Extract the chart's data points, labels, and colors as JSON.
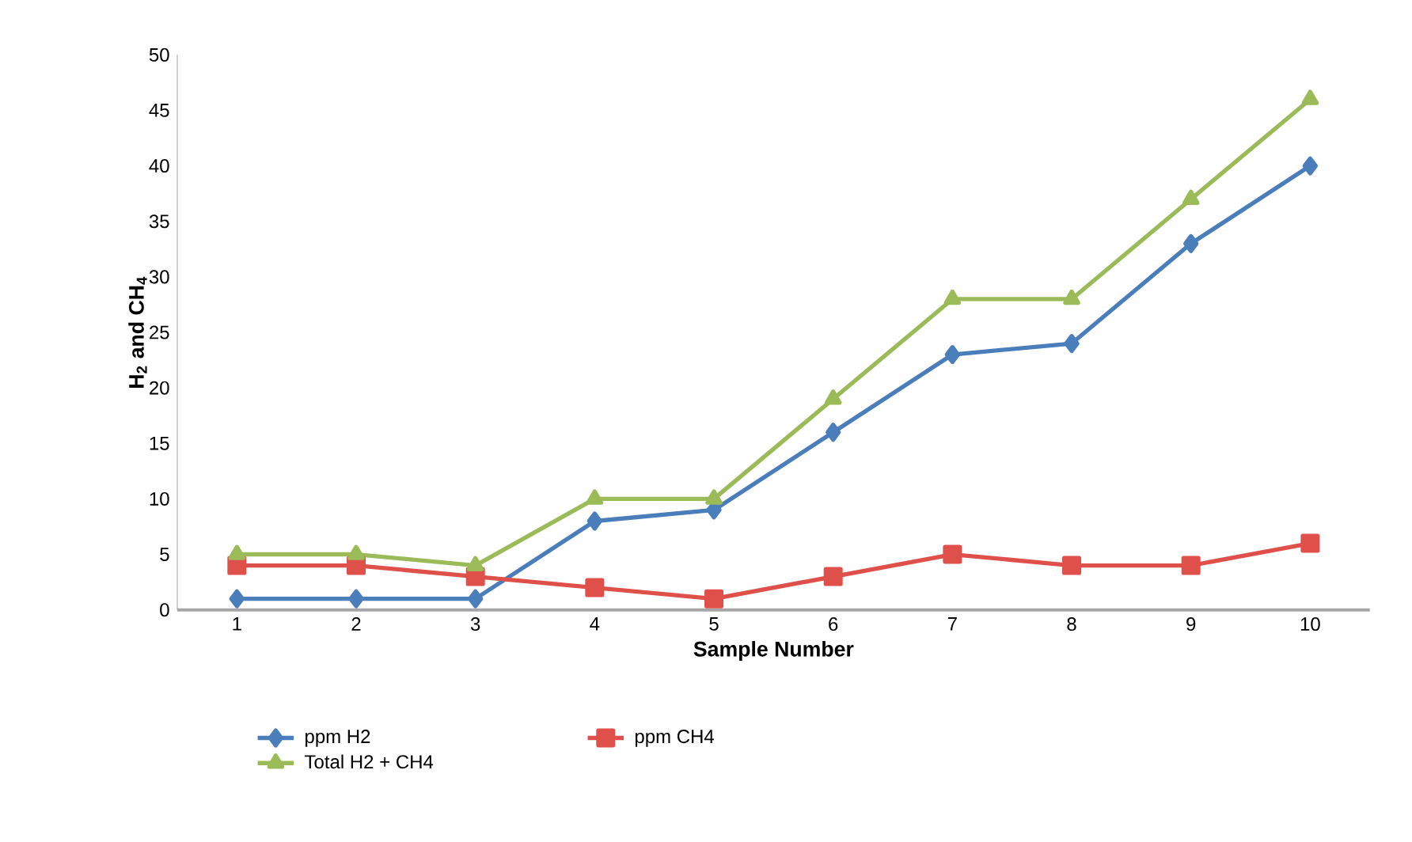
{
  "chart_data": {
    "type": "line",
    "xlabel": "Sample Number",
    "ylabel": "H$_{2}$ and CH$_{4}$",
    "categories": [
      "1",
      "2",
      "3",
      "4",
      "5",
      "6",
      "7",
      "8",
      "9",
      "10"
    ],
    "series": [
      {
        "name": "ppm H2",
        "color": "#4a7ebb",
        "marker": "diamond",
        "values": [
          1,
          1,
          1,
          8,
          9,
          16,
          23,
          24,
          33,
          40
        ]
      },
      {
        "name": "ppm CH4",
        "color": "#e0504a",
        "marker": "square",
        "values": [
          4,
          4,
          3,
          2,
          1,
          3,
          5,
          4,
          4,
          6
        ]
      },
      {
        "name": "Total H2 + CH4",
        "color": "#9bbb59",
        "marker": "triangle",
        "values": [
          5,
          5,
          4,
          10,
          10,
          19,
          28,
          28,
          37,
          46
        ]
      }
    ],
    "ylim": [
      0,
      50
    ],
    "yticks": [
      0,
      5,
      10,
      15,
      20,
      25,
      30,
      35,
      40,
      45,
      50
    ],
    "legend": "bottom",
    "line_style": "solid"
  }
}
